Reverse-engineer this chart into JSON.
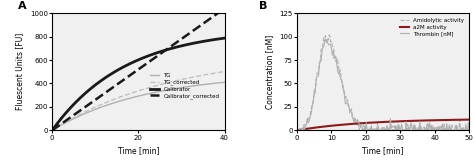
{
  "panel_A": {
    "title": "A",
    "xlabel": "Time [min]",
    "ylabel": "Fluescent Units [FU]",
    "xlim": [
      0,
      40
    ],
    "ylim": [
      0,
      1000
    ],
    "xticks": [
      0,
      20,
      40
    ],
    "yticks": [
      0,
      200,
      400,
      600,
      800,
      1000
    ],
    "bg_color": "#f0f0f0",
    "curves": {
      "tg": {
        "amp": 490,
        "tau": 22,
        "color": "#b0b0b0",
        "ls": "-",
        "lw": 1.0
      },
      "tg_corr": {
        "amp": 660,
        "tau": 28,
        "color": "#c0c0c0",
        "ls": "--",
        "lw": 1.0
      },
      "calib": {
        "amp": 870,
        "tau": 17,
        "color": "#1a1a1a",
        "ls": "-",
        "lw": 2.0
      },
      "calib_corr": {
        "slope": 26.0,
        "color": "#1a1a1a",
        "ls": "--",
        "lw": 1.8
      }
    },
    "legend": [
      "TG",
      "TG_corrected",
      "Calibrator",
      "Calibrator_corrected"
    ]
  },
  "panel_B": {
    "title": "B",
    "xlabel": "Time [min]",
    "ylabel": "Concentration [nM]",
    "xlim": [
      0,
      50
    ],
    "ylim": [
      0,
      125
    ],
    "xticks": [
      0,
      10,
      20,
      30,
      40,
      50
    ],
    "yticks": [
      0,
      25,
      50,
      75,
      100,
      125
    ],
    "bg_color": "#f0f0f0",
    "amido": {
      "peak_t": 8.5,
      "peak_v": 100,
      "rise_tau": 2.5,
      "fall_tau": 4.0,
      "color": "#b0b0b0",
      "ls": "--",
      "lw": 0.8
    },
    "a2m": {
      "amp": 12.5,
      "tau": 20,
      "color": "#8b1a1a",
      "ls": "-",
      "lw": 1.5
    },
    "thrombin": {
      "peak_t": 8.5,
      "peak_v": 95,
      "rise_tau": 2.5,
      "fall_tau": 4.0,
      "color": "#b0b0b0",
      "ls": "-",
      "lw": 0.8
    },
    "legend": [
      "Amidolytic activity",
      "a2M activity",
      "Thrombin [nM]"
    ]
  }
}
